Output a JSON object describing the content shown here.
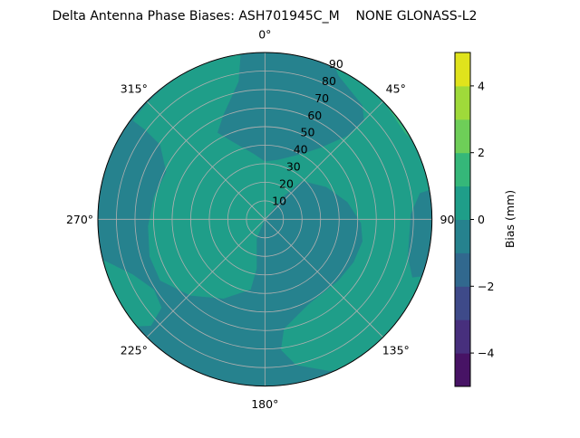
{
  "chart_data": {
    "type": "heatmap",
    "subtype": "polar filled contour",
    "title": "Delta Antenna Phase Biases: ASH701945C_M    NONE GLONASS-L2",
    "theta_direction": "clockwise",
    "theta_zero": "top",
    "theta_ticks": [
      "0°",
      "45°",
      "90°",
      "135°",
      "180°",
      "225°",
      "270°",
      "315°"
    ],
    "r_ticks": [
      "10",
      "20",
      "30",
      "40",
      "50",
      "60",
      "70",
      "80",
      "90"
    ],
    "r_range": [
      0,
      90
    ],
    "grid": true,
    "colorbar": {
      "label": "Bias (mm)",
      "range": [
        -5,
        5
      ],
      "levels": [
        -5,
        -4,
        -3,
        -2,
        -1,
        0,
        1,
        2,
        3,
        4,
        5
      ],
      "tick_values": [
        4,
        2,
        0,
        -2,
        -4
      ],
      "tick_labels": [
        "4",
        "2",
        "0",
        "−2",
        "−4"
      ],
      "colormap": "viridis",
      "colors": [
        "#471365",
        "#472f7d",
        "#3e4a89",
        "#31688e",
        "#26828e",
        "#1f9e89",
        "#35b779",
        "#6ece58",
        "#9fda3a",
        "#e0e31c"
      ]
    },
    "regions": [
      {
        "level_range": [
          -1,
          0
        ],
        "color": "#26828e",
        "where": "background: center-right, top-center, bottom, left band, right edge"
      },
      {
        "level_range": [
          0,
          1
        ],
        "color": "#1f9e89",
        "where": "left/top ring, top-right, lower-right band"
      },
      {
        "level_range": [
          0,
          1
        ],
        "color": "#1f9e89",
        "where": "lower-left edge"
      },
      {
        "level_range": [
          1,
          2
        ],
        "color": "#35b779",
        "where": "thin sliver at 45° edge"
      }
    ]
  }
}
